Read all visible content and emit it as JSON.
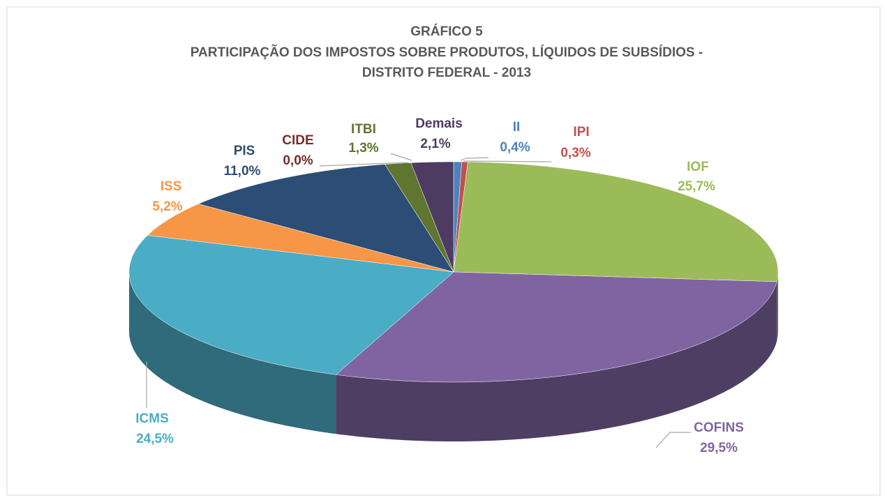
{
  "chart_data": {
    "type": "pie",
    "title": "GRÁFICO 5",
    "subtitle": [
      "PARTICIPAÇÃO DOS IMPOSTOS SOBRE PRODUTOS, LÍQUIDOS DE SUBSÍDIOS -",
      "DISTRITO FEDERAL - 2013"
    ],
    "categories": [
      "II",
      "IPI",
      "IOF",
      "COFINS",
      "ICMS",
      "ISS",
      "PIS",
      "CIDE",
      "ITBI",
      "Demais"
    ],
    "values": [
      0.4,
      0.3,
      25.7,
      29.5,
      24.5,
      5.2,
      11.0,
      0.0,
      1.3,
      2.1
    ],
    "value_labels": [
      "0,4%",
      "0,3%",
      "25,7%",
      "29,5%",
      "24,5%",
      "5,2%",
      "11,0%",
      "0,0%",
      "1,3%",
      "2,1%"
    ],
    "colors": [
      "#4f81bd",
      "#c0504d",
      "#9bbb59",
      "#8064a2",
      "#4bacc6",
      "#f79646",
      "#2c4d75",
      "#772c2a",
      "#5f7530",
      "#4d3b62"
    ]
  }
}
